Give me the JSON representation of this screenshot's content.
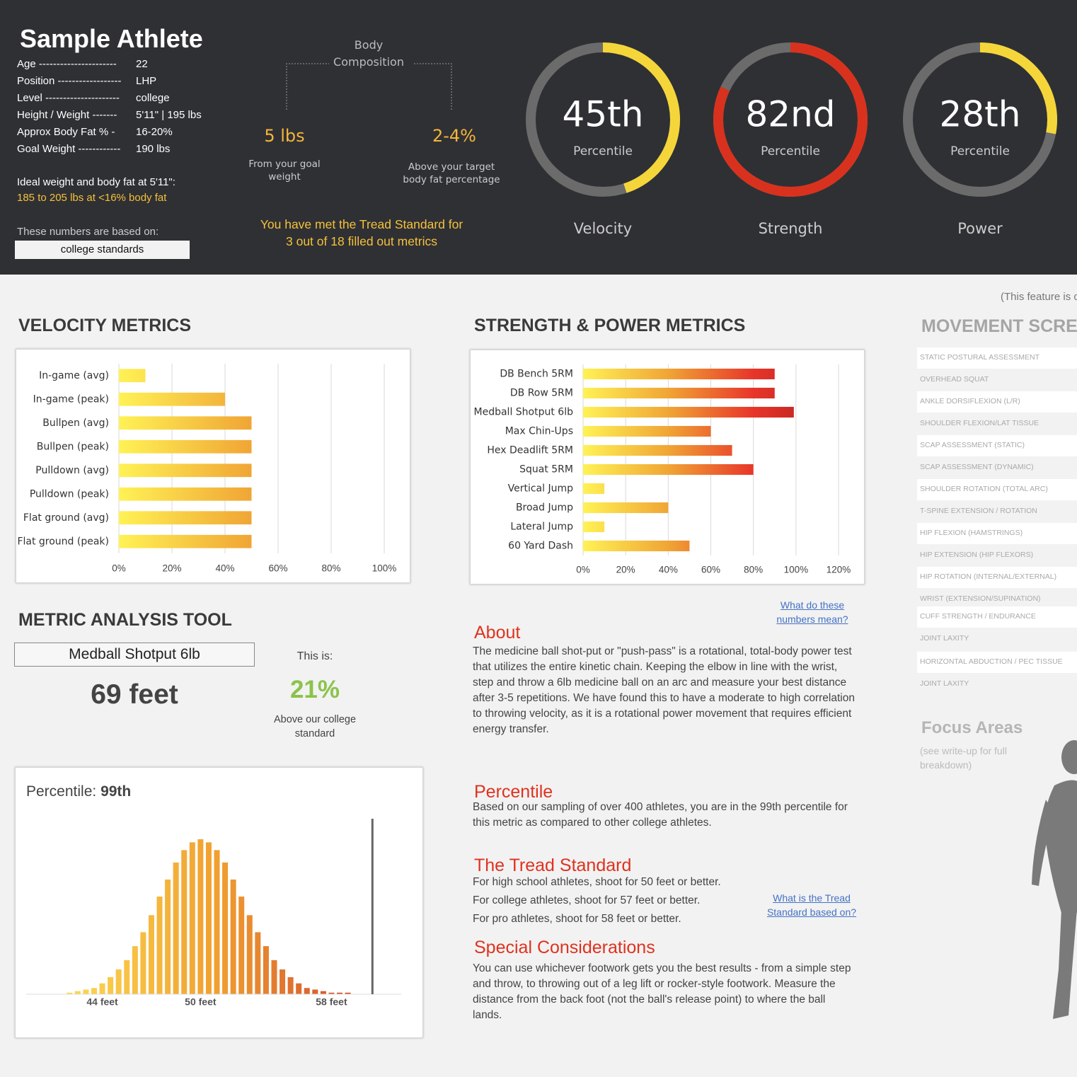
{
  "header": {
    "name": "Sample Athlete",
    "profile": [
      [
        "Age ----------------------",
        "22"
      ],
      [
        "Position ------------------",
        "LHP"
      ],
      [
        "Level ---------------------",
        "college"
      ],
      [
        "Height / Weight -------",
        "5'11\" | 195 lbs"
      ],
      [
        "Approx Body Fat % -",
        "16-20%"
      ],
      [
        "Goal Weight ------------",
        "190 lbs"
      ]
    ],
    "ideal_label": "Ideal weight and body fat at 5'11\":",
    "ideal_value": "185 to 205 lbs at <16% body fat",
    "based_on_label": "These numbers are based on:",
    "based_on_value": "college standards",
    "body_composition": {
      "title": "Body Composition",
      "items": [
        {
          "value": "5 lbs",
          "caption": "From your goal weight"
        },
        {
          "value": "2-4%",
          "caption": "Above your target body fat percentage"
        }
      ]
    },
    "tread_message": "You have met the Tread Standard for 3 out of 18 filled out metrics",
    "gauges": [
      {
        "value": 45,
        "label": "45th",
        "caption": "Percentile",
        "name": "Velocity",
        "color": "#f5d63a"
      },
      {
        "value": 82,
        "label": "82nd",
        "caption": "Percentile",
        "name": "Strength",
        "color": "#d8321e"
      },
      {
        "value": 28,
        "label": "28th",
        "caption": "Percentile",
        "name": "Power",
        "color": "#f5d63a"
      }
    ]
  },
  "chart_data": [
    {
      "type": "bar",
      "orientation": "horizontal",
      "title": "VELOCITY METRICS",
      "categories": [
        "In-game (avg)",
        "In-game (peak)",
        "Bullpen (avg)",
        "Bullpen (peak)",
        "Pulldown (avg)",
        "Pulldown (peak)",
        "Flat ground (avg)",
        "Flat ground (peak)"
      ],
      "values": [
        10,
        40,
        50,
        50,
        50,
        50,
        50,
        50
      ],
      "gradient": [
        "#fff255",
        "#f0a535"
      ],
      "xlim": [
        0,
        100
      ],
      "xticks": [
        {
          "value": 0,
          "label": "0%"
        },
        {
          "value": 20,
          "label": "20%"
        },
        {
          "value": 40,
          "label": "40%"
        },
        {
          "value": 60,
          "label": "60%"
        },
        {
          "value": 80,
          "label": "80%"
        },
        {
          "value": 100,
          "label": "100%"
        }
      ],
      "grid": true
    },
    {
      "type": "bar",
      "orientation": "horizontal",
      "title": "STRENGTH & POWER METRICS",
      "categories": [
        "DB Bench 5RM",
        "DB Row 5RM",
        "Medball Shotput 6lb",
        "Max Chin-Ups",
        "Hex Deadlift 5RM",
        "Squat 5RM",
        "Vertical Jump",
        "Broad Jump",
        "Lateral Jump",
        "60 Yard Dash"
      ],
      "values": [
        90,
        90,
        99,
        60,
        70,
        80,
        10,
        40,
        10,
        50
      ],
      "gradient": [
        "#fff255",
        "#f0a535",
        "#e8352a",
        "#a81c1c"
      ],
      "xlim": [
        0,
        120
      ],
      "xticks": [
        {
          "value": 0,
          "label": "0%"
        },
        {
          "value": 20,
          "label": "20%"
        },
        {
          "value": 40,
          "label": "40%"
        },
        {
          "value": 60,
          "label": "60%"
        },
        {
          "value": 80,
          "label": "80%"
        },
        {
          "value": 100,
          "label": "100%"
        },
        {
          "value": 120,
          "label": "120%"
        }
      ],
      "grid": true
    },
    {
      "type": "histogram",
      "title": "Percentile: ",
      "title_value": "99th",
      "x": [
        42,
        42.5,
        43,
        43.5,
        44,
        44.5,
        45,
        45.5,
        46,
        46.5,
        47,
        47.5,
        48,
        48.5,
        49,
        49.5,
        50,
        50.5,
        51,
        51.5,
        52,
        52.5,
        53,
        53.5,
        54,
        54.5,
        55,
        55.5,
        56,
        56.5,
        57,
        57.5,
        58,
        58.5,
        59
      ],
      "values": [
        1,
        2,
        3,
        4,
        7,
        11,
        16,
        22,
        31,
        40,
        51,
        63,
        74,
        85,
        93,
        98,
        100,
        98,
        93,
        85,
        74,
        63,
        51,
        40,
        31,
        22,
        16,
        11,
        7,
        4,
        3,
        2,
        1,
        1,
        1
      ],
      "marker_x": 60.5,
      "xlim": [
        40,
        62
      ],
      "ylim": [
        0,
        100
      ],
      "xticks": [
        {
          "value": 44,
          "label": "44 feet"
        },
        {
          "value": 50,
          "label": "50 feet"
        },
        {
          "value": 58,
          "label": "58 feet"
        }
      ],
      "gradient": [
        "#ffe45a",
        "#f0a030",
        "#c83030"
      ]
    }
  ],
  "analysis": {
    "title": "METRIC ANALYSIS TOOL",
    "metric": "Medball Shotput 6lb",
    "result": "69 feet",
    "this_is": "This is:",
    "percent": "21%",
    "percent_caption": "Above our college standard"
  },
  "info": {
    "link1": "What do these numbers mean?",
    "about_heading": "About",
    "about_text": "The medicine ball shot-put or \"push-pass\" is a rotational, total-body power test that utilizes the entire kinetic chain. Keeping the elbow in line with the wrist, step and throw a 6lb medicine ball on an arc and measure your best distance after 3-5 repetitions. We have found this to have a moderate to high correlation to throwing velocity, as it is a rotational power movement that requires efficient energy transfer.",
    "percentile_heading": "Percentile",
    "percentile_text": "Based on our sampling of over 400 athletes, you are in the 99th percentile for this metric as compared to other college athletes.",
    "tread_heading": "The Tread Standard",
    "tread_lines": [
      "For high school athletes, shoot for 50 feet or better.",
      "For college athletes, shoot for 57 feet or better.",
      "For pro athletes, shoot for 58 feet or better."
    ],
    "link2": "What is the Tread Standard based on?",
    "special_heading": "Special Considerations",
    "special_text": "You can use whichever footwork gets you the best results - from a simple step and throw, to throwing out of a leg lift or rocker-style footwork. Measure the distance from the back foot (not the ball's release point) to where the ball lands."
  },
  "movement": {
    "note": "(This feature is c",
    "title": "MOVEMENT SCREE",
    "items": [
      "STATIC POSTURAL ASSESSMENT",
      "OVERHEAD SQUAT",
      "ANKLE DORSIFLEXION (L/R)",
      "SHOULDER FLEXION/LAT TISSUE",
      "SCAP ASSESSMENT (STATIC)",
      "SCAP ASSESSMENT (DYNAMIC)",
      "SHOULDER ROTATION (TOTAL ARC)",
      "T-SPINE EXTENSION / ROTATION",
      "HIP FLEXION (HAMSTRINGS)",
      "HIP EXTENSION (HIP FLEXORS)",
      "HIP ROTATION (INTERNAL/EXTERNAL)",
      "WRIST (EXTENSION/SUPINATION)",
      "CUFF STRENGTH / ENDURANCE",
      "JOINT LAXITY",
      "HORIZONTAL ABDUCTION / PEC TISSUE",
      "JOINT LAXITY"
    ],
    "focus_title": "Focus Areas",
    "focus_note": "(see write-up for full breakdown)"
  }
}
